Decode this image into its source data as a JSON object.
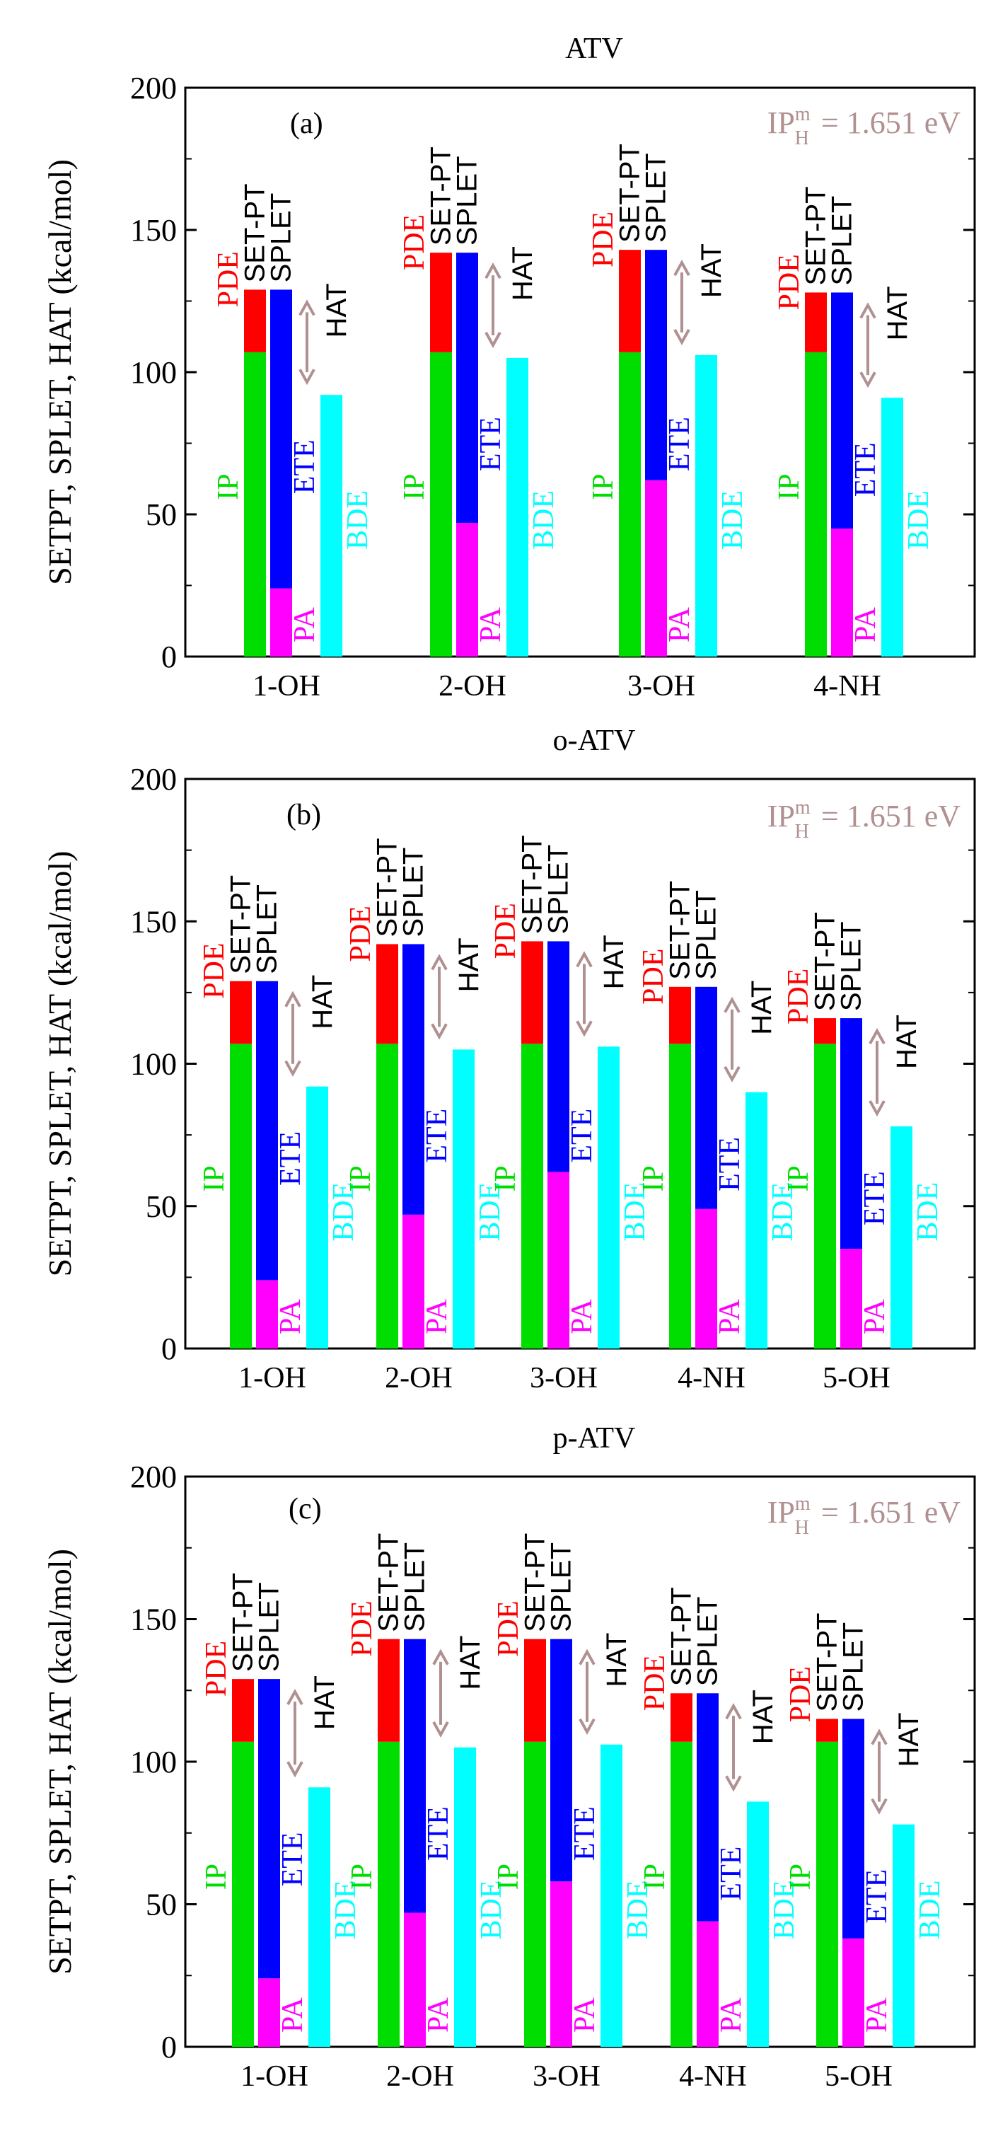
{
  "colors": {
    "IP": "#00dd00",
    "PDE": "#ff0000",
    "PA": "#ff00ff",
    "ETE": "#0000ff",
    "BDE": "#00ffff",
    "arrow": "#b09090",
    "axis": "#000000"
  },
  "chart_data": [
    {
      "type": "bar",
      "panel": "(a)",
      "title": "ATV",
      "ylabel": "SETPT, SPLET, HAT (kcal/mol)",
      "ylim": [
        0,
        200
      ],
      "yticks": [
        "0",
        "50",
        "100",
        "150",
        "200"
      ],
      "annotation": {
        "main": "IP",
        "sup": "m",
        "sub": "H",
        "rest": "= 1.651  eV"
      },
      "bar_labels": {
        "IP": "IP",
        "PDE": "PDE",
        "PA": "PA",
        "ETE": "ETE",
        "BDE": "BDE",
        "SETPT": "SET-PT",
        "SPLET": "SPLET",
        "HAT": "HAT"
      },
      "categories": [
        "1-OH",
        "2-OH",
        "3-OH",
        "4-NH"
      ],
      "series": [
        {
          "name": "IP",
          "values": [
            107,
            107,
            107,
            107
          ]
        },
        {
          "name": "PDE",
          "values": [
            22,
            35,
            36,
            21
          ]
        },
        {
          "name": "PA",
          "values": [
            24,
            47,
            62,
            45
          ]
        },
        {
          "name": "ETE",
          "values": [
            105,
            95,
            81,
            83
          ]
        },
        {
          "name": "BDE",
          "values": [
            92,
            105,
            106,
            91
          ]
        }
      ]
    },
    {
      "type": "bar",
      "panel": "(b)",
      "title": "o-ATV",
      "ylabel": "SETPT, SPLET, HAT (kcal/mol)",
      "ylim": [
        0,
        200
      ],
      "yticks": [
        "0",
        "50",
        "100",
        "150",
        "200"
      ],
      "annotation": {
        "main": "IP",
        "sup": "m",
        "sub": "H",
        "rest": "= 1.651  eV"
      },
      "bar_labels": {
        "IP": "IP",
        "PDE": "PDE",
        "PA": "PA",
        "ETE": "ETE",
        "BDE": "BDE",
        "SETPT": "SET-PT",
        "SPLET": "SPLET",
        "HAT": "HAT"
      },
      "categories": [
        "1-OH",
        "2-OH",
        "3-OH",
        "4-NH",
        "5-OH"
      ],
      "series": [
        {
          "name": "IP",
          "values": [
            107,
            107,
            107,
            107,
            107
          ]
        },
        {
          "name": "PDE",
          "values": [
            22,
            35,
            36,
            20,
            9
          ]
        },
        {
          "name": "PA",
          "values": [
            24,
            47,
            62,
            49,
            35
          ]
        },
        {
          "name": "ETE",
          "values": [
            105,
            95,
            81,
            78,
            81
          ]
        },
        {
          "name": "BDE",
          "values": [
            92,
            105,
            106,
            90,
            78
          ]
        }
      ]
    },
    {
      "type": "bar",
      "panel": "(c)",
      "title": "p-ATV",
      "ylabel": "SETPT, SPLET, HAT (kcal/mol)",
      "ylim": [
        0,
        200
      ],
      "yticks": [
        "0",
        "50",
        "100",
        "150",
        "200"
      ],
      "annotation": {
        "main": "IP",
        "sup": "m",
        "sub": "H",
        "rest": "= 1.651  eV"
      },
      "bar_labels": {
        "IP": "IP",
        "PDE": "PDE",
        "PA": "PA",
        "ETE": "ETE",
        "BDE": "BDE",
        "SETPT": "SET-PT",
        "SPLET": "SPLET",
        "HAT": "HAT"
      },
      "categories": [
        "1-OH",
        "2-OH",
        "3-OH",
        "4-NH",
        "5-OH"
      ],
      "series": [
        {
          "name": "IP",
          "values": [
            107,
            107,
            107,
            107,
            107
          ]
        },
        {
          "name": "PDE",
          "values": [
            22,
            36,
            36,
            17,
            8
          ]
        },
        {
          "name": "PA",
          "values": [
            24,
            47,
            58,
            44,
            38
          ]
        },
        {
          "name": "ETE",
          "values": [
            105,
            96,
            85,
            80,
            77
          ]
        },
        {
          "name": "BDE",
          "values": [
            91,
            105,
            106,
            86,
            78
          ]
        }
      ]
    }
  ]
}
